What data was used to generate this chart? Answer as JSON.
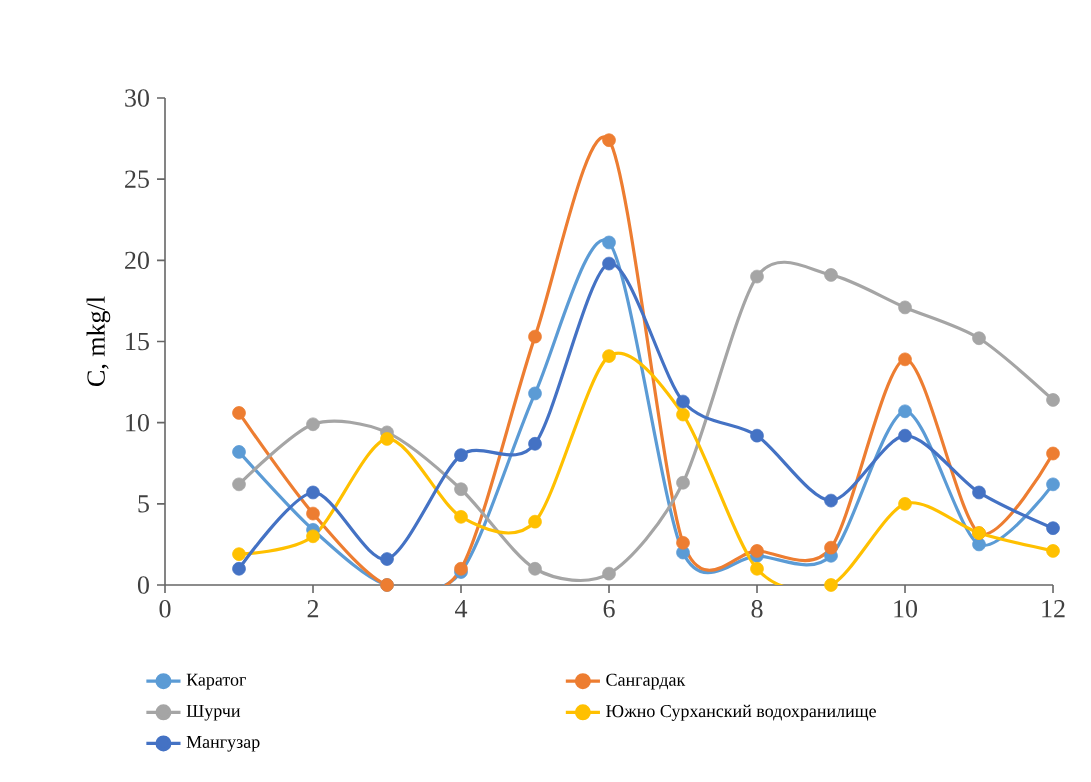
{
  "chart_data": {
    "type": "line",
    "ylabel": "C, mkg/l",
    "x": [
      1,
      2,
      3,
      4,
      5,
      6,
      7,
      8,
      9,
      10,
      11,
      12
    ],
    "xlim": [
      0,
      12
    ],
    "xticks": [
      0,
      2,
      4,
      6,
      8,
      10,
      12
    ],
    "ylim": [
      0,
      30
    ],
    "yticks": [
      0,
      5,
      10,
      15,
      20,
      25,
      30
    ],
    "legend": "bottom",
    "marker": "circle",
    "series": [
      {
        "name": "Каратог",
        "color": "#5b9bd5",
        "values": [
          8.2,
          3.4,
          0,
          0.8,
          11.8,
          21.1,
          2.0,
          1.8,
          1.8,
          10.7,
          2.5,
          6.2
        ]
      },
      {
        "name": "Сангардак",
        "color": "#ed7d31",
        "values": [
          10.6,
          4.4,
          0,
          1.0,
          15.3,
          27.4,
          2.6,
          2.1,
          2.3,
          13.9,
          3.2,
          8.1
        ]
      },
      {
        "name": "Шурчи",
        "color": "#a5a5a5",
        "values": [
          6.2,
          9.9,
          9.4,
          5.9,
          1.0,
          0.7,
          6.3,
          19.0,
          19.1,
          17.1,
          15.2,
          11.4
        ]
      },
      {
        "name": "Южно Сурханский водохранилище",
        "color": "#ffc000",
        "values": [
          1.9,
          3.0,
          9.0,
          4.2,
          3.9,
          14.1,
          10.5,
          1.0,
          0,
          5.0,
          3.2,
          2.1
        ]
      },
      {
        "name": "Мангузар",
        "color": "#4472c4",
        "values": [
          1.0,
          5.7,
          1.6,
          8.0,
          8.7,
          19.8,
          11.3,
          9.2,
          5.2,
          9.2,
          5.7,
          3.5
        ]
      }
    ]
  }
}
